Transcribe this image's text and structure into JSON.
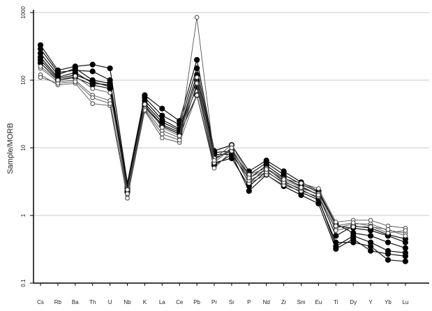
{
  "chart_data": {
    "type": "line",
    "title": "",
    "xlabel": "",
    "ylabel": "Sample/MORB",
    "yscale": "log",
    "ylim": [
      0.1,
      1000
    ],
    "yticks": [
      "1000",
      "100",
      "10",
      "1",
      "0.1"
    ],
    "grid": "horizontal",
    "legend": "none",
    "categories": [
      "Cs",
      "Rb",
      "Ba",
      "Th",
      "U",
      "Nb",
      "K",
      "La",
      "Ce",
      "Pb",
      "Pr",
      "Sr",
      "P",
      "Nd",
      "Zr",
      "Sm",
      "Eu",
      "Ti",
      "Dy",
      "Y",
      "Yb",
      "Lu"
    ],
    "series": [
      {
        "marker": "filled",
        "values": [
          330,
          140,
          160,
          170,
          150,
          3.0,
          60,
          38,
          25,
          200,
          9,
          11,
          4.5,
          6.5,
          4.5,
          3.1,
          2.3,
          0.75,
          0.55,
          0.5,
          0.4,
          0.33
        ]
      },
      {
        "marker": "filled",
        "values": [
          290,
          130,
          140,
          135,
          100,
          2.8,
          55,
          30,
          22,
          150,
          8.5,
          9,
          4,
          6.0,
          4.0,
          2.9,
          2.2,
          0.7,
          0.65,
          0.6,
          0.5,
          0.4
        ]
      },
      {
        "marker": "filled",
        "values": [
          250,
          120,
          150,
          100,
          90,
          2.6,
          50,
          26,
          19,
          120,
          8,
          8,
          3.5,
          5.5,
          3.6,
          2.7,
          2.0,
          0.5,
          0.7,
          0.65,
          0.52,
          0.45
        ]
      },
      {
        "marker": "filled",
        "values": [
          220,
          110,
          130,
          90,
          85,
          2.5,
          45,
          24,
          18,
          100,
          7,
          9,
          3,
          5.0,
          3.2,
          2.4,
          1.8,
          0.35,
          0.5,
          0.4,
          0.3,
          0.28
        ]
      },
      {
        "marker": "filled",
        "values": [
          200,
          105,
          120,
          95,
          80,
          2.3,
          42,
          22,
          17,
          80,
          6,
          7,
          2.7,
          4.5,
          3.0,
          2.2,
          1.7,
          0.4,
          0.4,
          0.35,
          0.22,
          0.21
        ]
      },
      {
        "marker": "filled",
        "values": [
          180,
          100,
          110,
          85,
          75,
          2.2,
          40,
          21,
          16,
          60,
          5.5,
          8,
          2.3,
          4.0,
          2.7,
          2.0,
          1.5,
          0.32,
          0.45,
          0.3,
          0.27,
          0.25
        ]
      },
      {
        "marker": "open",
        "values": [
          150,
          95,
          100,
          60,
          50,
          2.0,
          38,
          18,
          14,
          850,
          7,
          11,
          4,
          5,
          3.5,
          3,
          2.5,
          0.8,
          0.85,
          0.85,
          0.7,
          0.65
        ]
      },
      {
        "marker": "open",
        "values": [
          120,
          85,
          90,
          45,
          42,
          1.8,
          35,
          14,
          12,
          60,
          5,
          9,
          3,
          4,
          2.8,
          2.3,
          1.9,
          0.65,
          0.75,
          0.75,
          0.6,
          0.55
        ]
      },
      {
        "marker": "open",
        "values": [
          110,
          90,
          95,
          55,
          45,
          2.1,
          36,
          16,
          13,
          90,
          6,
          10,
          3.3,
          4.4,
          3.1,
          2.5,
          2.1,
          0.7,
          0.78,
          0.7,
          0.55,
          0.6
        ]
      },
      {
        "marker": "open",
        "values": [
          160,
          100,
          115,
          75,
          65,
          2.4,
          44,
          20,
          15,
          110,
          6.5,
          10,
          3.6,
          4.8,
          3.4,
          2.6,
          2.0,
          0.6,
          0.68,
          0.68,
          0.62,
          0.5
        ]
      }
    ]
  }
}
